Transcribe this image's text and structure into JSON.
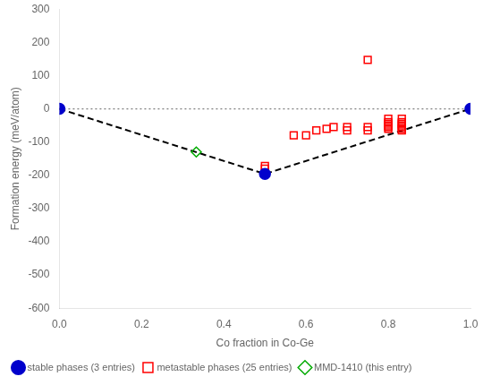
{
  "chart_data": {
    "type": "scatter",
    "xlabel": "Co fraction in Co-Ge",
    "ylabel": "Formation energy (meV/atom)",
    "xlim": [
      0.0,
      1.0
    ],
    "ylim": [
      -600,
      300
    ],
    "xticks": [
      {
        "value": 0.0,
        "label": "0.0"
      },
      0.2,
      0.4,
      0.6,
      0.8,
      {
        "value": 1.0,
        "label": "1.0"
      }
    ],
    "yticks": [
      -600,
      -500,
      -400,
      -300,
      -200,
      -100,
      0,
      100,
      200,
      300
    ],
    "grid": false,
    "legend": "lower left",
    "series": [
      {
        "name": "stable phases (3 entries)",
        "type": "scatter",
        "marker": "circle",
        "color": "#0000cc",
        "x": [
          0.0,
          0.5,
          1.0
        ],
        "values": [
          0.0,
          -196.0,
          0.0
        ]
      },
      {
        "name": "metastable phases (25 entries)",
        "type": "scatter",
        "marker": "square-open",
        "color": "#ff0000",
        "x": [
          0.5,
          0.5,
          0.57,
          0.6,
          0.625,
          0.65,
          0.667,
          0.75,
          0.7,
          0.7,
          0.75,
          0.75,
          0.8,
          0.8,
          0.8,
          0.8,
          0.8,
          0.8,
          0.833,
          0.833,
          0.833,
          0.833,
          0.833,
          0.833,
          0.833
        ],
        "values": [
          -180,
          -172,
          -80,
          -80,
          -65,
          -60,
          -55,
          147,
          -65,
          -55,
          -65,
          -55,
          -30,
          -40,
          -45,
          -50,
          -55,
          -60,
          -30,
          -40,
          -45,
          -50,
          -55,
          -60,
          -65
        ]
      },
      {
        "name": "MMD-1410 (this entry)",
        "type": "scatter",
        "marker": "diamond-open",
        "color": "#00aa00",
        "x": [
          0.333
        ],
        "values": [
          -130
        ]
      },
      {
        "type": "line",
        "line_style": "dashed",
        "color": "#000000",
        "x": [
          0.0,
          0.5,
          1.0
        ],
        "values": [
          0.0,
          -196.0,
          0.0
        ]
      },
      {
        "type": "line",
        "line_style": "dotted",
        "color": "#808080",
        "x": [
          0.0,
          1.0
        ],
        "values": [
          0,
          0
        ]
      }
    ]
  }
}
